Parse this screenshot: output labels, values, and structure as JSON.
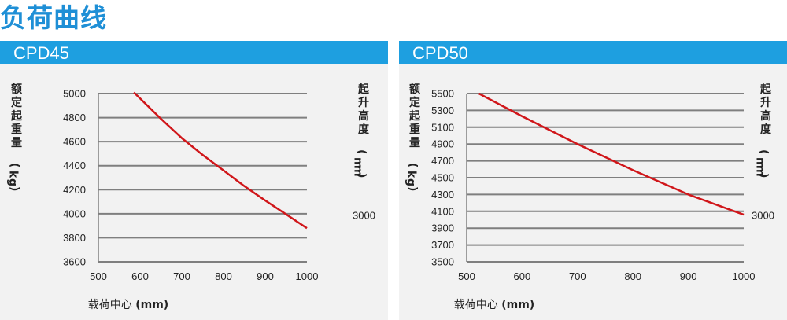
{
  "page": {
    "title": "负荷曲线"
  },
  "colors": {
    "title": "#1e8fd6",
    "header": "#1e9fe0",
    "panel": "#f2f2f2",
    "grid": "#7f7f7f",
    "curve": "#d0161a"
  },
  "chart_data": [
    {
      "type": "line",
      "title": "CPD45",
      "xlabel": "载荷中心 (mm)",
      "ylabel": "额定起重量 (kg)",
      "y2label": "起升高度 (mm)",
      "xlim": [
        500,
        1000
      ],
      "ylim": [
        3600,
        5000
      ],
      "xticks": [
        500,
        600,
        700,
        800,
        900,
        1000
      ],
      "yticks": [
        3600,
        3800,
        4000,
        4200,
        4400,
        4600,
        4800,
        5000
      ],
      "grid": true,
      "series": [
        {
          "name": "3000",
          "x": [
            585,
            650,
            700,
            750,
            800,
            850,
            900,
            950,
            1000
          ],
          "y": [
            5010,
            4790,
            4630,
            4490,
            4360,
            4230,
            4110,
            3995,
            3880
          ]
        }
      ]
    },
    {
      "type": "line",
      "title": "CPD50",
      "xlabel": "载荷中心 (mm)",
      "ylabel": "额定起重量 (kg)",
      "y2label": "起升高度 (mm)",
      "xlim": [
        500,
        1000
      ],
      "ylim": [
        3500,
        5500
      ],
      "xticks": [
        500,
        600,
        700,
        800,
        900,
        1000
      ],
      "yticks": [
        3500,
        3700,
        3900,
        4100,
        4300,
        4500,
        4700,
        4900,
        5100,
        5300,
        5500
      ],
      "grid": true,
      "series": [
        {
          "name": "3000",
          "x": [
            522,
            600,
            700,
            800,
            900,
            1000
          ],
          "y": [
            5500,
            5230,
            4900,
            4590,
            4300,
            4060
          ]
        }
      ]
    }
  ]
}
